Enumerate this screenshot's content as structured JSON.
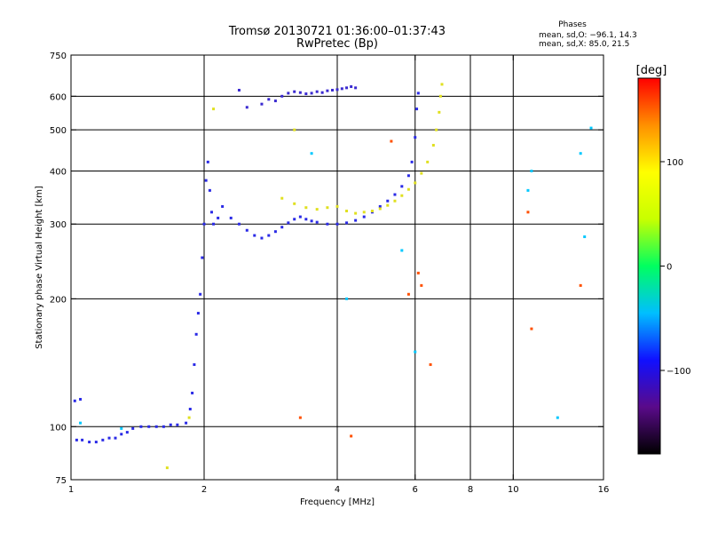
{
  "chart_data": {
    "type": "scatter",
    "title": "Tromsø 20130721 01:36:00–01:37:43",
    "subtitle": "RwPretec (Bp)",
    "stats": {
      "heading": "Phases",
      "line1": "mean, sd,O: −96.1, 14.3",
      "line2": "mean, sd,X:  85.0, 21.5"
    },
    "xlabel": "Frequency [MHz]",
    "ylabel": "Stationary phase Virtual Height [km]",
    "x_scale": "log",
    "y_scale": "log",
    "xlim": [
      1,
      16
    ],
    "ylim": [
      75,
      750
    ],
    "x_ticks": [
      1,
      2,
      4,
      6,
      8,
      10,
      16
    ],
    "x_tick_labels": [
      "1",
      "2",
      "4",
      "6",
      "8",
      "10",
      "16"
    ],
    "y_ticks": [
      75,
      100,
      200,
      300,
      400,
      500,
      600,
      750
    ],
    "y_tick_labels": [
      "75",
      "100",
      "200",
      "300",
      "400",
      "500",
      "600",
      "750"
    ],
    "x_gridlines": [
      2,
      4,
      6,
      8,
      10
    ],
    "y_gridlines": [
      100,
      200,
      300,
      400,
      500,
      600
    ],
    "grid": true,
    "colorbar": {
      "label": "[deg]",
      "range": [
        -180,
        180
      ],
      "ticks": [
        100,
        0,
        -100
      ],
      "tick_labels": [
        "100",
        "0",
        "−100"
      ],
      "colors": [
        "#000000",
        "#5a0a8a",
        "#1010ff",
        "#00bfff",
        "#00ff60",
        "#c8ff00",
        "#ffff00",
        "#ff9000",
        "#ff0000"
      ]
    },
    "series": [
      {
        "values": [
          [
            1.03,
            93
          ],
          [
            1.06,
            93
          ],
          [
            1.1,
            92
          ],
          [
            1.14,
            92
          ],
          [
            1.18,
            93
          ],
          [
            1.22,
            94
          ],
          [
            1.26,
            94
          ],
          [
            1.3,
            96
          ],
          [
            1.34,
            97
          ],
          [
            1.38,
            99
          ],
          [
            1.44,
            100
          ],
          [
            1.5,
            100
          ],
          [
            1.56,
            100
          ],
          [
            1.62,
            100
          ],
          [
            1.68,
            101
          ],
          [
            1.74,
            101
          ],
          [
            1.82,
            102
          ],
          [
            1.86,
            110
          ],
          [
            1.88,
            120
          ],
          [
            1.9,
            140
          ],
          [
            1.92,
            165
          ],
          [
            1.94,
            185
          ],
          [
            1.96,
            205
          ],
          [
            1.98,
            250
          ],
          [
            2.0,
            300
          ],
          [
            2.02,
            380
          ],
          [
            2.04,
            420
          ],
          [
            2.06,
            360
          ],
          [
            2.08,
            320
          ],
          [
            2.1,
            300
          ],
          [
            2.15,
            310
          ],
          [
            2.2,
            330
          ],
          [
            2.3,
            310
          ],
          [
            2.4,
            300
          ],
          [
            2.5,
            290
          ],
          [
            2.6,
            282
          ],
          [
            2.7,
            278
          ],
          [
            2.8,
            282
          ],
          [
            2.9,
            288
          ],
          [
            3.0,
            295
          ],
          [
            3.1,
            302
          ],
          [
            3.2,
            308
          ],
          [
            3.3,
            312
          ],
          [
            3.4,
            308
          ],
          [
            3.5,
            305
          ],
          [
            3.6,
            303
          ],
          [
            3.8,
            300
          ],
          [
            4.0,
            300
          ],
          [
            4.2,
            302
          ],
          [
            4.4,
            306
          ],
          [
            4.6,
            312
          ],
          [
            4.8,
            320
          ],
          [
            5.0,
            330
          ],
          [
            5.2,
            340
          ],
          [
            5.4,
            352
          ],
          [
            5.6,
            368
          ],
          [
            5.8,
            390
          ],
          [
            5.9,
            420
          ],
          [
            6.0,
            480
          ],
          [
            6.05,
            560
          ],
          [
            6.1,
            610
          ],
          [
            1.02,
            115
          ],
          [
            1.05,
            116
          ]
        ]
      },
      {
        "values": [
          [
            2.5,
            565
          ],
          [
            2.7,
            575
          ],
          [
            2.9,
            585
          ],
          [
            3.0,
            600
          ],
          [
            3.1,
            610
          ],
          [
            3.2,
            615
          ],
          [
            3.3,
            612
          ],
          [
            3.4,
            608
          ],
          [
            3.5,
            610
          ],
          [
            3.6,
            615
          ],
          [
            3.7,
            612
          ],
          [
            3.8,
            618
          ],
          [
            3.9,
            620
          ],
          [
            4.0,
            622
          ],
          [
            4.1,
            625
          ],
          [
            4.2,
            628
          ],
          [
            4.3,
            632
          ],
          [
            4.4,
            628
          ],
          [
            2.4,
            620
          ],
          [
            2.8,
            590
          ]
        ]
      },
      {
        "values": [
          [
            3.0,
            345
          ],
          [
            3.2,
            335
          ],
          [
            3.4,
            328
          ],
          [
            3.6,
            325
          ],
          [
            3.8,
            328
          ],
          [
            4.0,
            330
          ],
          [
            4.2,
            322
          ],
          [
            4.4,
            318
          ],
          [
            4.6,
            320
          ],
          [
            4.8,
            322
          ],
          [
            5.0,
            326
          ],
          [
            5.2,
            332
          ],
          [
            5.4,
            340
          ],
          [
            5.6,
            350
          ],
          [
            5.8,
            362
          ],
          [
            6.0,
            375
          ],
          [
            6.2,
            395
          ],
          [
            6.4,
            420
          ],
          [
            6.6,
            460
          ],
          [
            6.7,
            500
          ],
          [
            6.8,
            550
          ],
          [
            6.85,
            600
          ],
          [
            6.9,
            640
          ],
          [
            1.65,
            80
          ],
          [
            1.85,
            105
          ],
          [
            2.1,
            560
          ],
          [
            3.2,
            500
          ]
        ]
      },
      {
        "values": [
          [
            3.3,
            105
          ],
          [
            4.3,
            95
          ],
          [
            5.3,
            470
          ],
          [
            5.8,
            205
          ],
          [
            6.1,
            230
          ],
          [
            6.2,
            215
          ],
          [
            6.5,
            140
          ],
          [
            10.8,
            320
          ],
          [
            14.2,
            215
          ],
          [
            11,
            170
          ]
        ]
      },
      {
        "values": [
          [
            1.05,
            102
          ],
          [
            1.3,
            99
          ],
          [
            3.5,
            440
          ],
          [
            4.2,
            200
          ],
          [
            5.6,
            260
          ],
          [
            6.0,
            150
          ],
          [
            10.8,
            360
          ],
          [
            11,
            400
          ],
          [
            14.5,
            280
          ],
          [
            15,
            505
          ],
          [
            12.6,
            105
          ],
          [
            14.2,
            440
          ]
        ]
      }
    ]
  }
}
